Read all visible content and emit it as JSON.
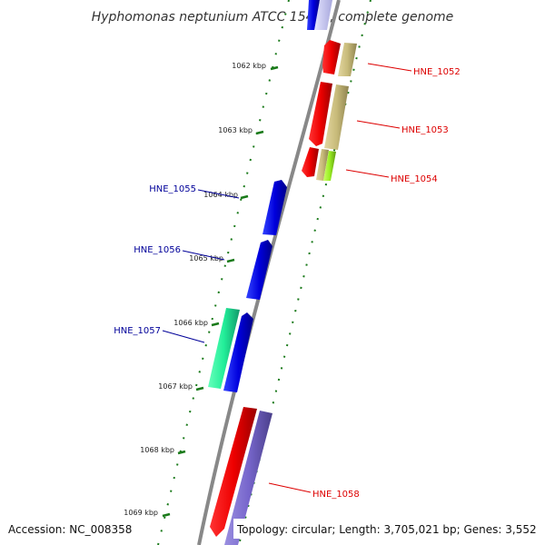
{
  "title": "Hyphomonas neptunium ATCC 15444, complete genome",
  "footer": {
    "accession": "Accession: NC_008358",
    "summary": "Topology: circular; Length: 3,705,021 bp; Genes: 3,552"
  },
  "ticks": [
    {
      "label": "1062 kbp"
    },
    {
      "label": "1063 kbp"
    },
    {
      "label": "1064 kbp"
    },
    {
      "label": "1065 kbp"
    },
    {
      "label": "1066 kbp"
    },
    {
      "label": "1067 kbp"
    },
    {
      "label": "1068 kbp"
    },
    {
      "label": "1069 kbp"
    }
  ],
  "genes": [
    {
      "label": "HNE_1052",
      "color": "#dd0000"
    },
    {
      "label": "HNE_1053",
      "color": "#dd0000"
    },
    {
      "label": "HNE_1054",
      "color": "#dd0000"
    },
    {
      "label": "HNE_1055",
      "color": "#000099"
    },
    {
      "label": "HNE_1056",
      "color": "#000099"
    },
    {
      "label": "HNE_1057",
      "color": "#000099"
    },
    {
      "label": "HNE_1058",
      "color": "#dd0000"
    }
  ],
  "colors": {
    "backbone": "#888888",
    "forward_cds": "#0000ee",
    "reverse_cds": "#ee0000",
    "tick": "#1a7a1a",
    "cog_tan": "#c8bb7a",
    "cog_lime": "#99ee22",
    "cog_teal": "#22ee99",
    "cog_purple": "#7766cc"
  }
}
